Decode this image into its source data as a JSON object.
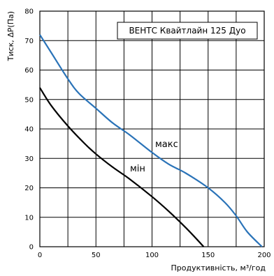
{
  "chart_data": {
    "type": "line",
    "title": "ВЕНТС Квайтлайн 125 Дуо",
    "xlabel": "Продуктивність, м³/год",
    "ylabel": "Тиск, ΔР(Па)",
    "xlim": [
      0,
      200
    ],
    "ylim": [
      0,
      80
    ],
    "x_ticks": [
      0,
      50,
      100,
      150,
      200
    ],
    "y_ticks": [
      0,
      10,
      20,
      30,
      40,
      50,
      60,
      70,
      80
    ],
    "grid": true,
    "series": [
      {
        "name": "макс",
        "color": "#2a73b8",
        "x": [
          0,
          10,
          25,
          35,
          50,
          65,
          80,
          100,
          115,
          130,
          150,
          165,
          175,
          185,
          198
        ],
        "y": [
          72,
          66,
          57,
          52,
          47,
          42,
          38,
          32,
          28,
          25,
          20,
          15,
          10.5,
          5,
          0
        ]
      },
      {
        "name": "мін",
        "color": "#000000",
        "x": [
          0,
          10,
          25,
          40,
          50,
          65,
          80,
          100,
          115,
          130,
          140,
          146
        ],
        "y": [
          54,
          48,
          41,
          35,
          31.5,
          27,
          23,
          17,
          12,
          6.5,
          2.5,
          0
        ]
      }
    ]
  }
}
